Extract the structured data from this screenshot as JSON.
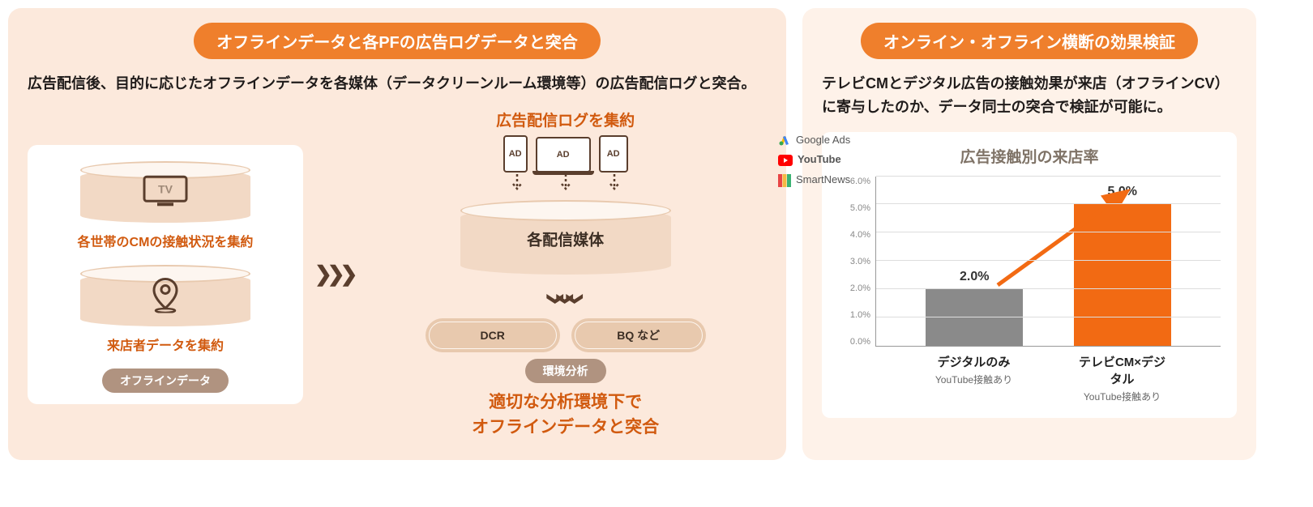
{
  "left": {
    "title": "オフラインデータと各PFの広告ログデータと突合",
    "description": "広告配信後、目的に応じたオフラインデータを各媒体（データクリーンルーム環境等）の広告配信ログと突合。",
    "offline": {
      "tv_icon_text": "TV",
      "tv_caption": "各世帯のCMの接触状況を集約",
      "visit_caption": "来店者データを集約",
      "badge": "オフラインデータ"
    },
    "ad": {
      "heading": "広告配信ログを集約",
      "device_label": "AD",
      "platforms": [
        "Google Ads",
        "YouTube",
        "SmartNews"
      ],
      "cylinder_label": "各配信媒体",
      "dcr": "DCR",
      "bq": "BQ など",
      "env_badge": "環境分析",
      "conclusion_1": "適切な分析環境下で",
      "conclusion_2": "オフラインデータと突合"
    }
  },
  "right": {
    "title": "オンライン・オフライン横断の効果検証",
    "description": "テレビCMとデジタル広告の接触効果が来店（オフラインCV）に寄与したのか、データ同士の突合で検証が可能に。",
    "chart": {
      "type": "bar",
      "title": "広告接触別の来店率",
      "y_ticks": [
        "6.0%",
        "5.0%",
        "4.0%",
        "3.0%",
        "2.0%",
        "1.0%",
        "0.0%"
      ],
      "y_max": 6.0,
      "categories": [
        {
          "main": "デジタルのみ",
          "sub": "YouTube接触あり",
          "value": 2.0,
          "label": "2.0%",
          "color": "#8a8a8a"
        },
        {
          "main": "テレビCM×デジタル",
          "sub": "YouTube接触あり",
          "value": 5.0,
          "label": "5.0%",
          "color": "#f26a13"
        }
      ],
      "grid_color": "#dddddd",
      "axis_color": "#999999",
      "arrow_color": "#f26a13",
      "background": "#ffffff"
    }
  },
  "colors": {
    "accent": "#ef7f2c",
    "accent_dark": "#d15a0f",
    "panel_left": "#fce9dc",
    "panel_right": "#fef2e9",
    "brown": "#5a3e2d"
  }
}
